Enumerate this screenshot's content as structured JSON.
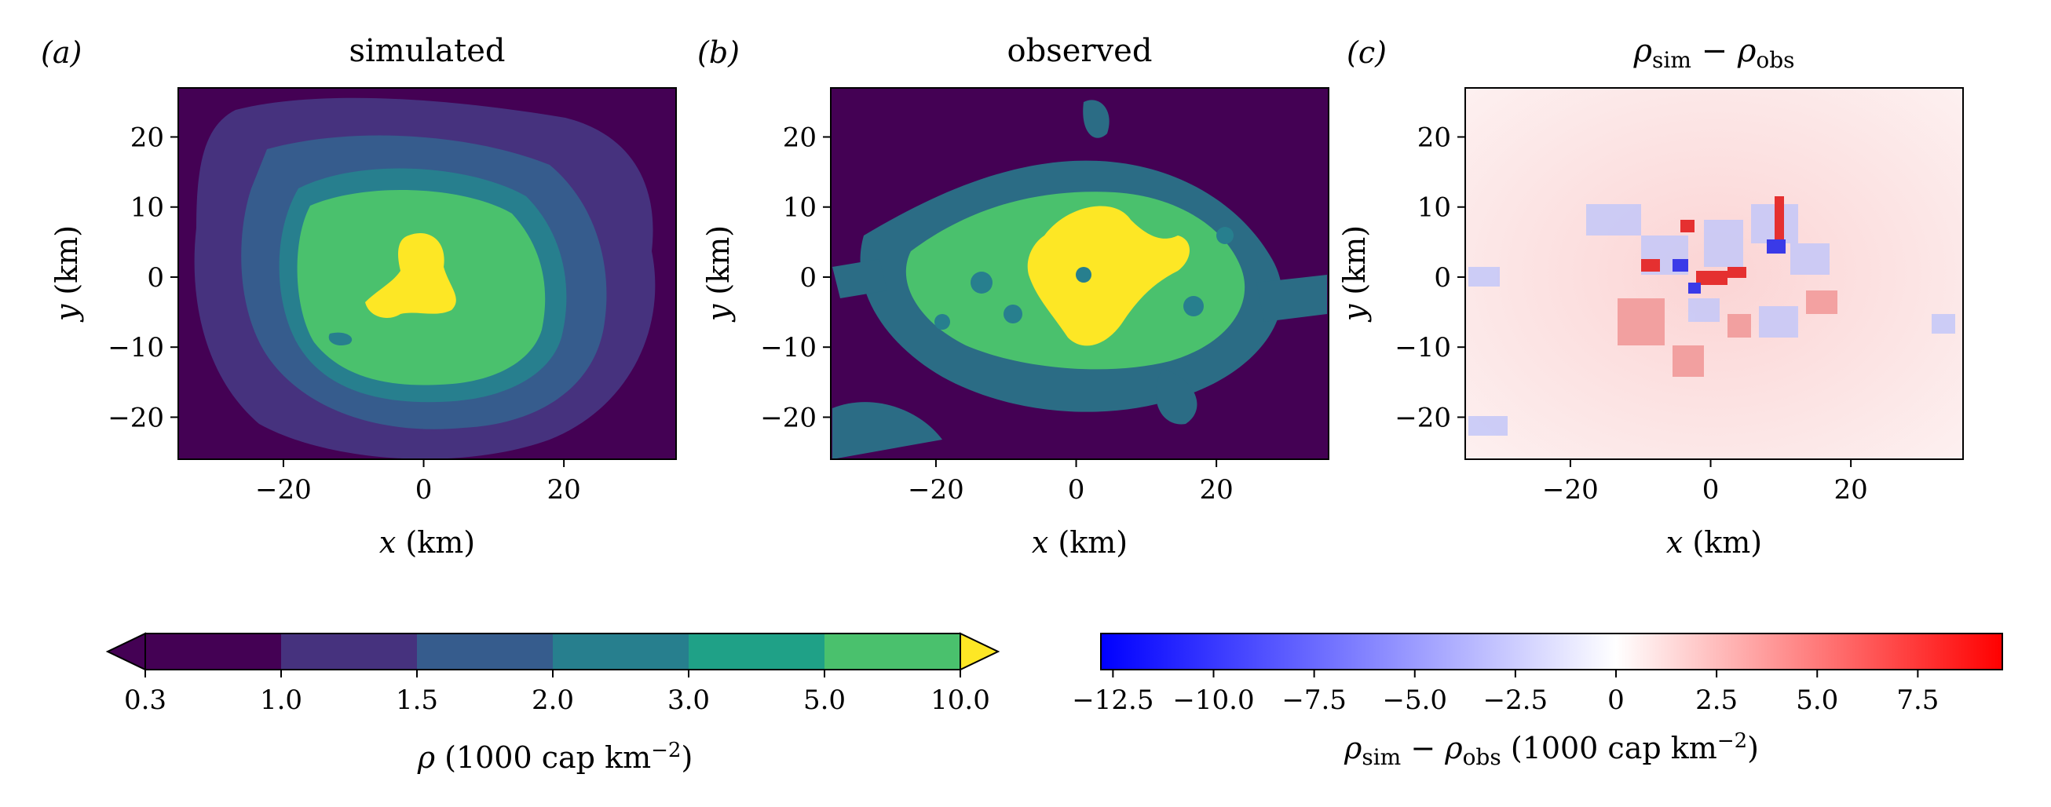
{
  "chart_data": [
    {
      "type": "heatmap",
      "panel": "(a)",
      "title": "simulated",
      "xlabel": "x (km)",
      "ylabel": "y (km)",
      "xlim": [
        -35,
        36
      ],
      "ylim": [
        -26,
        27
      ],
      "xticks": [
        -20,
        0,
        20
      ],
      "yticks": [
        -20,
        -10,
        0,
        10,
        20
      ],
      "colorscale": "density"
    },
    {
      "type": "heatmap",
      "panel": "(b)",
      "title": "observed",
      "xlabel": "x (km)",
      "ylabel": "y (km)",
      "xlim": [
        -35,
        36
      ],
      "ylim": [
        -26,
        27
      ],
      "xticks": [
        -20,
        0,
        20
      ],
      "yticks": [
        -20,
        -10,
        0,
        10,
        20
      ],
      "colorscale": "density"
    },
    {
      "type": "heatmap",
      "panel": "(c)",
      "title": "ρsim − ρobs",
      "xlabel": "x (km)",
      "ylabel": "y (km)",
      "xlim": [
        -35,
        36
      ],
      "ylim": [
        -26,
        27
      ],
      "xticks": [
        -20,
        0,
        20
      ],
      "yticks": [
        -20,
        -10,
        0,
        10,
        20
      ],
      "colorscale": "difference"
    }
  ],
  "labels": {
    "panel_a": "(a)",
    "panel_b": "(b)",
    "panel_c": "(c)",
    "title_a": "simulated",
    "title_b": "observed",
    "title_c_rho": "ρ",
    "title_c_sim": "sim",
    "title_c_minus": " − ",
    "title_c_obs": "obs",
    "x_var": "x",
    "x_unit": " (km)",
    "y_var": "y",
    "y_unit": " (km)"
  },
  "colorbar_density": {
    "boundaries": [
      "0.3",
      "1.0",
      "1.5",
      "2.0",
      "3.0",
      "5.0",
      "10.0"
    ],
    "colors": [
      "#440154",
      "#46327e",
      "#365c8d",
      "#277f8e",
      "#1fa187",
      "#4ac16d",
      "#fde725"
    ],
    "label_rho": "ρ",
    "label_unit": " (1000 cap km",
    "label_exp": "−2",
    "label_close": ")"
  },
  "colorbar_diff": {
    "vmin": -12.8,
    "vmax": 9.6,
    "ticks": [
      "−12.5",
      "−10.0",
      "−7.5",
      "−5.0",
      "−2.5",
      "0",
      "2.5",
      "5.0",
      "7.5"
    ],
    "tick_values": [
      -12.5,
      -10.0,
      -7.5,
      -5.0,
      -2.5,
      0,
      2.5,
      5.0,
      7.5
    ],
    "color_neg": "#0000ff",
    "color_pos": "#ff0000",
    "label_rho": "ρ",
    "label_sim": "sim",
    "label_minus": " − ",
    "label_obs": "obs",
    "label_unit": " (1000 cap km",
    "label_exp": "−2",
    "label_close": ")"
  }
}
